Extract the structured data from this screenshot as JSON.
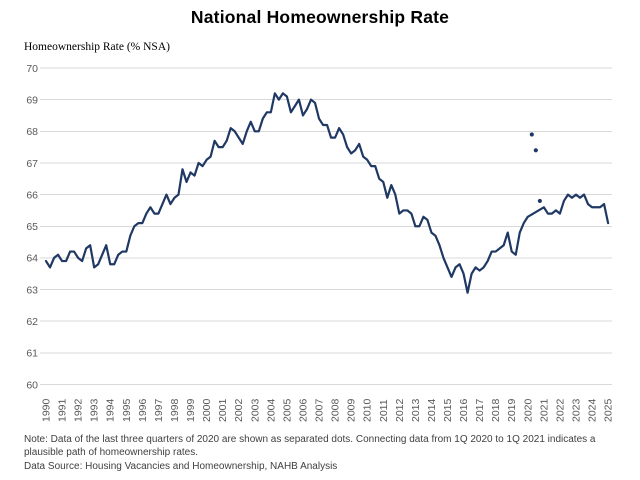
{
  "page": {
    "title": "National Homeownership Rate"
  },
  "chart_data": {
    "type": "line",
    "title": "National Homeownership Rate",
    "ylabel": "Homeownership Rate (% NSA)",
    "xlabel": "",
    "ylim": [
      60,
      70
    ],
    "ytick_labels": [
      "60",
      "61",
      "62",
      "63",
      "64",
      "65",
      "66",
      "67",
      "68",
      "69",
      "70"
    ],
    "x_tick_labels": [
      "1990",
      "1991",
      "1992",
      "1993",
      "1994",
      "1995",
      "1996",
      "1997",
      "1998",
      "1999",
      "2000",
      "2001",
      "2002",
      "2003",
      "2004",
      "2005",
      "2006",
      "2007",
      "2008",
      "2009",
      "2010",
      "2011",
      "2012",
      "2013",
      "2014",
      "2015",
      "2016",
      "2017",
      "2018",
      "2019",
      "2020",
      "2021",
      "2022",
      "2023",
      "2024",
      "2025"
    ],
    "frequency": "quarterly",
    "x_range": "1990 Q1 to 2025 Q1",
    "grid": "horizontal",
    "legend": "none",
    "series": [
      {
        "name": "National Homeownership Rate (% NSA)",
        "start": "1990 Q1",
        "values": [
          63.9,
          63.7,
          64.0,
          64.1,
          63.9,
          63.9,
          64.2,
          64.2,
          64.0,
          63.9,
          64.3,
          64.4,
          63.7,
          63.8,
          64.1,
          64.4,
          63.8,
          63.8,
          64.1,
          64.2,
          64.2,
          64.7,
          65.0,
          65.1,
          65.1,
          65.4,
          65.6,
          65.4,
          65.4,
          65.7,
          66.0,
          65.7,
          65.9,
          66.0,
          66.8,
          66.4,
          66.7,
          66.6,
          67.0,
          66.9,
          67.1,
          67.2,
          67.7,
          67.5,
          67.5,
          67.7,
          68.1,
          68.0,
          67.8,
          67.6,
          68.0,
          68.3,
          68.0,
          68.0,
          68.4,
          68.6,
          68.6,
          69.2,
          69.0,
          69.2,
          69.1,
          68.6,
          68.8,
          69.0,
          68.5,
          68.7,
          69.0,
          68.9,
          68.4,
          68.2,
          68.2,
          67.8,
          67.8,
          68.1,
          67.9,
          67.5,
          67.3,
          67.4,
          67.6,
          67.2,
          67.1,
          66.9,
          66.9,
          66.5,
          66.4,
          65.9,
          66.3,
          66.0,
          65.4,
          65.5,
          65.5,
          65.4,
          65.0,
          65.0,
          65.3,
          65.2,
          64.8,
          64.7,
          64.4,
          64.0,
          63.7,
          63.4,
          63.7,
          63.8,
          63.5,
          62.9,
          63.5,
          63.7,
          63.6,
          63.7,
          63.9,
          64.2,
          64.2,
          64.3,
          64.4,
          64.8,
          64.2,
          64.1,
          64.8,
          65.1,
          65.3,
          null,
          null,
          null,
          65.6,
          65.4,
          65.4,
          65.5,
          65.4,
          65.8,
          66.0,
          65.9,
          66.0,
          65.9,
          66.0,
          65.7,
          65.6,
          65.6,
          65.6,
          65.7,
          65.1
        ]
      }
    ],
    "separated_dots": [
      {
        "label": "2020 Q2",
        "index": 121,
        "value": 67.9
      },
      {
        "label": "2020 Q3",
        "index": 122,
        "value": 67.4
      },
      {
        "label": "2020 Q4",
        "index": 123,
        "value": 65.8
      }
    ],
    "colors": {
      "line": "#1f3864",
      "dot": "#1f3864",
      "gridline": "#d9d9d9",
      "tick_label": "#595959",
      "title": "#000000",
      "note_text": "#3f3f3f"
    },
    "note": "Note: Data of the last three quarters of 2020 are shown as separated dots. Connecting data from 1Q 2020 to 1Q 2021 indicates a plausible path of homeownership rates.",
    "source": "Data Source: Housing Vacancies and Homeownership, NAHB Analysis"
  }
}
